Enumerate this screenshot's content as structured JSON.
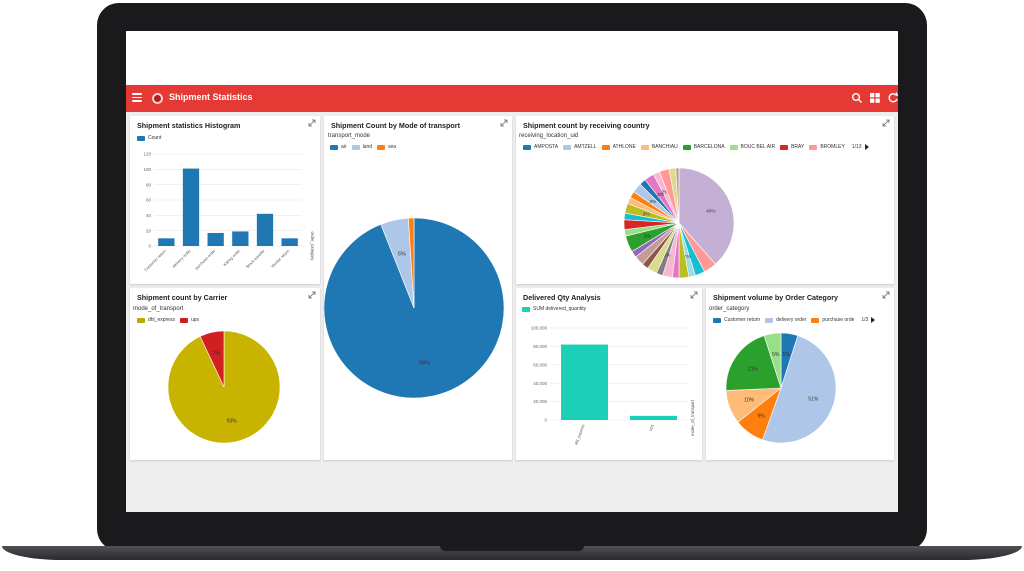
{
  "app": {
    "title": "Shipment Statistics",
    "brand_color": "#e53935"
  },
  "toolbar": {
    "icons": [
      "menu-icon",
      "logo-icon",
      "search-icon",
      "dashboard-grid-icon",
      "refresh-icon"
    ]
  },
  "histogram": {
    "title": "Shipment statistics Histogram",
    "legend": [
      {
        "label": "Count",
        "color": "#1f77b4"
      }
    ],
    "axis_label": "order_category",
    "chart_data": {
      "type": "bar",
      "categories": [
        "Customer return",
        "delivery order",
        "purchase order",
        "Kitting order",
        "Stock transfer",
        "Vendor return"
      ],
      "values": [
        10,
        101,
        17,
        19,
        42,
        10
      ],
      "yticks": [
        0,
        20,
        40,
        60,
        80,
        100,
        120
      ],
      "ylim": [
        0,
        120
      ],
      "color": "#1f77b4"
    }
  },
  "mode_transport": {
    "title": "Shipment Count by Mode of transport",
    "legend_title": "transport_mode",
    "legend": [
      {
        "label": "air",
        "color": "#1f77b4"
      },
      {
        "label": "land",
        "color": "#aec7e8"
      },
      {
        "label": "sea",
        "color": "#ff7f0e"
      }
    ],
    "chart_data": {
      "type": "pie",
      "slices": [
        {
          "label": "air",
          "value": 94,
          "color": "#1f77b4",
          "text": "94%"
        },
        {
          "label": "land",
          "value": 5,
          "color": "#aec7e8",
          "text": "5%"
        },
        {
          "label": "sea",
          "value": 1,
          "color": "#ff7f0e",
          "text": ""
        }
      ]
    }
  },
  "country": {
    "title": "Shipment count by receiving country",
    "legend_title": "receiving_location_uid",
    "legend": [
      {
        "label": "AMPOSTA",
        "color": "#1f77b4"
      },
      {
        "label": "AMTZELL",
        "color": "#aec7e8"
      },
      {
        "label": "ATHLONE",
        "color": "#ff7f0e"
      },
      {
        "label": "BANCHIAU",
        "color": "#ffbb78"
      },
      {
        "label": "BARCELONA",
        "color": "#2ca02c"
      },
      {
        "label": "BOUC BEL AIR",
        "color": "#98df8a"
      },
      {
        "label": "BRAY",
        "color": "#d62728"
      },
      {
        "label": "BROMLEY",
        "color": "#ff9896"
      }
    ],
    "pager": "1/13",
    "chart_data": {
      "type": "pie",
      "slices": [
        {
          "value": 40,
          "color": "#c5b0d5",
          "text": "40%"
        },
        {
          "value": 4,
          "color": "#ff9896",
          "text": ""
        },
        {
          "value": 3,
          "color": "#17becf",
          "text": ""
        },
        {
          "value": 2,
          "color": "#9edae5",
          "text": "2%"
        },
        {
          "value": 3,
          "color": "#bcbd22",
          "text": ""
        },
        {
          "value": 2,
          "color": "#e377c2",
          "text": ""
        },
        {
          "value": 3,
          "color": "#f7b6d2",
          "text": ""
        },
        {
          "value": 2,
          "color": "#7f7f7f",
          "text": "2%"
        },
        {
          "value": 3,
          "color": "#dbdb8d",
          "text": ""
        },
        {
          "value": 2,
          "color": "#8c564b",
          "text": ""
        },
        {
          "value": 3,
          "color": "#c49c94",
          "text": ""
        },
        {
          "value": 2,
          "color": "#9467bd",
          "text": ""
        },
        {
          "value": 5,
          "color": "#2ca02c",
          "text": "5%"
        },
        {
          "value": 2,
          "color": "#98df8a",
          "text": ""
        },
        {
          "value": 3,
          "color": "#d62728",
          "text": ""
        },
        {
          "value": 2,
          "color": "#17becf",
          "text": ""
        },
        {
          "value": 3,
          "color": "#bcbd22",
          "text": "3%"
        },
        {
          "value": 2,
          "color": "#ffbb78",
          "text": ""
        },
        {
          "value": 2,
          "color": "#ff7f0e",
          "text": ""
        },
        {
          "value": 3,
          "color": "#aec7e8",
          "text": "3%"
        },
        {
          "value": 2,
          "color": "#1f77b4",
          "text": ""
        },
        {
          "value": 3,
          "color": "#e377c2",
          "text": "3%"
        },
        {
          "value": 2,
          "color": "#f7b6d2",
          "text": "2%"
        },
        {
          "value": 3,
          "color": "#ff9896",
          "text": ""
        },
        {
          "value": 2,
          "color": "#dbdb8d",
          "text": ""
        },
        {
          "value": 1,
          "color": "#c49c94",
          "text": ""
        }
      ]
    }
  },
  "carrier": {
    "title": "Shipment count by Carrier",
    "legend_title": "mode_of_transport",
    "legend": [
      {
        "label": "dhl_express",
        "color": "#bcaa00"
      },
      {
        "label": "ups",
        "color": "#cc1f1a"
      }
    ],
    "chart_data": {
      "type": "pie",
      "slices": [
        {
          "label": "dhl_express",
          "value": 93,
          "color": "#c8b400",
          "text": "93%"
        },
        {
          "label": "ups",
          "value": 7,
          "color": "#d21f1f",
          "text": "7%"
        }
      ]
    }
  },
  "delivered": {
    "title": "Delivered Qty Analysis",
    "legend": [
      {
        "label": "SUM delivered_quantity",
        "color": "#1ccfb7"
      }
    ],
    "axis_label": "mode_of_transport",
    "chart_data": {
      "type": "bar",
      "categories": [
        "dhl_express",
        "ups"
      ],
      "values": [
        82000,
        4500
      ],
      "yticks": [
        "0",
        "20,000",
        "40,000",
        "60,000",
        "80,000",
        "100,000"
      ],
      "ylim": [
        0,
        100000
      ],
      "color": "#1ccfb7"
    }
  },
  "order_category": {
    "title": "Shipment volume by Order Category",
    "legend_title": "order_category",
    "legend": [
      {
        "label": "Customer return",
        "color": "#1f77b4"
      },
      {
        "label": "delivery order",
        "color": "#aec7e8"
      },
      {
        "label": "purchase orde",
        "color": "#ff7f0e"
      }
    ],
    "pager": "1/3",
    "chart_data": {
      "type": "pie",
      "slices": [
        {
          "label": "Customer return",
          "value": 5,
          "color": "#1f77b4",
          "text": "5%"
        },
        {
          "label": "delivery order",
          "value": 51,
          "color": "#aec7e8",
          "text": "51%"
        },
        {
          "label": "purchase order",
          "value": 9,
          "color": "#ff7f0e",
          "text": "9%"
        },
        {
          "label": "",
          "value": 10,
          "color": "#ffbb78",
          "text": "10%"
        },
        {
          "label": "",
          "value": 21,
          "color": "#2ca02c",
          "text": "21%"
        },
        {
          "label": "",
          "value": 5,
          "color": "#98df8a",
          "text": "5%"
        }
      ]
    }
  }
}
